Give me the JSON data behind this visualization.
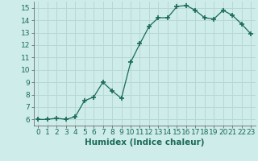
{
  "title": "",
  "xlabel": "Humidex (Indice chaleur)",
  "x": [
    0,
    1,
    2,
    3,
    4,
    5,
    6,
    7,
    8,
    9,
    10,
    11,
    12,
    13,
    14,
    15,
    16,
    17,
    18,
    19,
    20,
    21,
    22,
    23
  ],
  "y": [
    6.0,
    6.0,
    6.1,
    6.0,
    6.2,
    7.5,
    7.8,
    9.0,
    8.3,
    7.7,
    10.6,
    12.1,
    13.5,
    14.2,
    14.2,
    15.1,
    15.2,
    14.8,
    14.2,
    14.1,
    14.8,
    14.4,
    13.7,
    12.9
  ],
  "ylim": [
    5.5,
    15.5
  ],
  "xlim": [
    -0.5,
    23.5
  ],
  "yticks": [
    6,
    7,
    8,
    9,
    10,
    11,
    12,
    13,
    14,
    15
  ],
  "xticks": [
    0,
    1,
    2,
    3,
    4,
    5,
    6,
    7,
    8,
    9,
    10,
    11,
    12,
    13,
    14,
    15,
    16,
    17,
    18,
    19,
    20,
    21,
    22,
    23
  ],
  "line_color": "#1a6b5a",
  "marker_color": "#1a6b5a",
  "bg_color": "#ceecea",
  "grid_color": "#b8d8d4",
  "tick_label_fontsize": 6.5,
  "xlabel_fontsize": 7.5
}
